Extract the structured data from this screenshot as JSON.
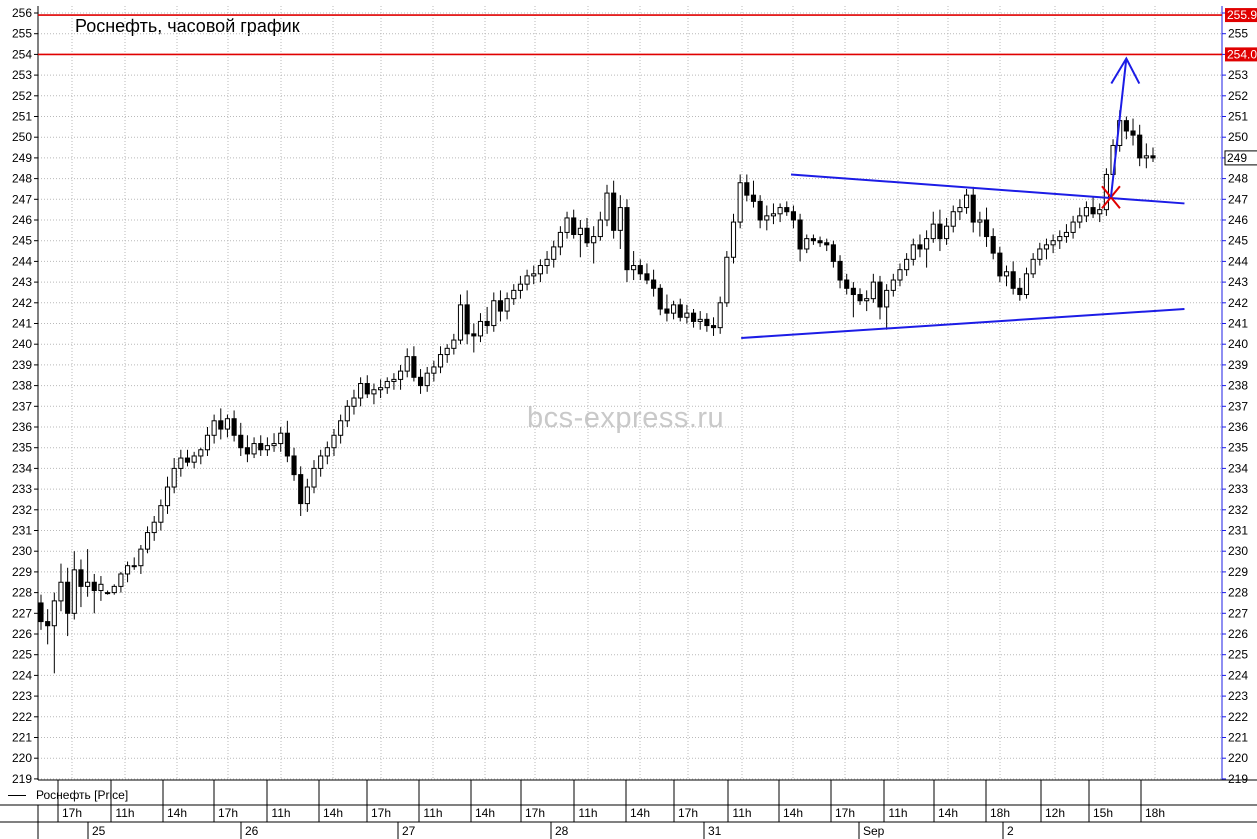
{
  "title": "Роснефть, часовой график",
  "watermark": "bcs-express.ru",
  "legend": "Роснефть [Price]",
  "colors": {
    "candle": "#000000",
    "trendline": "#1c1ce6",
    "resistance": "#e00000",
    "cross": "#e00000",
    "grid": "#b9b9b9",
    "price_tag_red": "#e00000"
  },
  "chart_data": {
    "type": "candlestick",
    "ylim": [
      219,
      256
    ],
    "y_ticks": [
      219,
      220,
      221,
      222,
      223,
      224,
      225,
      226,
      227,
      228,
      229,
      230,
      231,
      232,
      233,
      234,
      235,
      236,
      237,
      238,
      239,
      240,
      241,
      242,
      243,
      244,
      245,
      246,
      247,
      248,
      249,
      250,
      251,
      252,
      253,
      254,
      255,
      256
    ],
    "x_hour_labels": [
      "17h",
      "11h",
      "14h",
      "17h",
      "11h",
      "14h",
      "17h",
      "11h",
      "14h",
      "17h",
      "11h",
      "14h",
      "17h",
      "11h",
      "14h",
      "17h",
      "11h",
      "14h",
      "18h",
      "12h",
      "15h",
      "18h"
    ],
    "x_date_labels": [
      "25",
      "26",
      "27",
      "28",
      "31",
      "Sep",
      "2"
    ],
    "price_tags": [
      {
        "label": "255.9",
        "value": 255.9
      },
      {
        "label": "254.0",
        "value": 254.0
      },
      {
        "label": "249",
        "value": 249
      }
    ],
    "last_price": "249",
    "annotations": {
      "resistance_levels": [
        255.9,
        254.0
      ],
      "upper_trendline": {
        "from": [
          0.636,
          248.2
        ],
        "to": [
          0.9683,
          246.8
        ]
      },
      "lower_trendline": {
        "from": [
          0.5939,
          240.3
        ],
        "to": [
          0.9683,
          241.7
        ]
      },
      "breakout_mark": {
        "x": 0.9062,
        "y": 247.1
      },
      "target_arrow": {
        "from": [
          0.9062,
          247.1
        ],
        "to": [
          0.9192,
          253.8
        ]
      }
    },
    "series": [
      {
        "candles": [
          [
            227.5,
            227.9,
            226.2,
            226.6
          ],
          [
            226.6,
            227.2,
            225.5,
            226.4
          ],
          [
            226.4,
            228.0,
            224.1,
            227.6
          ],
          [
            227.6,
            229.4,
            227.1,
            228.5
          ],
          [
            228.5,
            229.2,
            225.9,
            227.0
          ],
          [
            227.0,
            230.0,
            226.7,
            229.1
          ],
          [
            229.1,
            229.6,
            227.3,
            228.3
          ],
          [
            228.3,
            230.1,
            227.8,
            228.5
          ],
          [
            228.5,
            228.9,
            227.0,
            228.1
          ],
          [
            228.1,
            228.8,
            227.6,
            228.4
          ],
          [
            228.0,
            228.1,
            227.9,
            228.0
          ],
          [
            228.0,
            228.4,
            227.9,
            228.3
          ],
          [
            228.3,
            229.0,
            228.0,
            228.9
          ],
          [
            228.9,
            229.5,
            228.5,
            229.3
          ],
          [
            229.3,
            229.7,
            229.1,
            229.3
          ],
          [
            229.3,
            230.3,
            228.9,
            230.1
          ],
          [
            230.1,
            231.2,
            229.9,
            230.9
          ],
          [
            230.9,
            231.7,
            230.5,
            231.4
          ],
          [
            231.4,
            232.5,
            231.0,
            232.2
          ],
          [
            232.2,
            233.6,
            231.8,
            233.1
          ],
          [
            233.1,
            234.5,
            232.8,
            234.0
          ],
          [
            234.0,
            234.9,
            233.6,
            234.5
          ],
          [
            234.5,
            234.9,
            234.1,
            234.3
          ],
          [
            234.3,
            234.8,
            234.0,
            234.6
          ],
          [
            234.6,
            235.0,
            234.2,
            234.9
          ],
          [
            234.9,
            236.0,
            234.6,
            235.6
          ],
          [
            235.6,
            236.6,
            235.2,
            236.3
          ],
          [
            236.3,
            236.9,
            235.4,
            235.9
          ],
          [
            235.9,
            236.6,
            235.5,
            236.4
          ],
          [
            236.4,
            236.8,
            235.3,
            235.6
          ],
          [
            235.6,
            236.2,
            234.6,
            235.0
          ],
          [
            235.0,
            235.6,
            234.3,
            234.7
          ],
          [
            234.7,
            235.5,
            234.5,
            235.2
          ],
          [
            235.2,
            235.6,
            234.6,
            234.9
          ],
          [
            234.9,
            235.5,
            234.6,
            235.1
          ],
          [
            235.1,
            235.7,
            234.8,
            235.2
          ],
          [
            235.2,
            236.0,
            234.8,
            235.7
          ],
          [
            235.7,
            236.3,
            234.3,
            234.6
          ],
          [
            234.6,
            235.0,
            233.4,
            233.7
          ],
          [
            233.7,
            234.1,
            231.7,
            232.3
          ],
          [
            232.3,
            233.5,
            231.9,
            233.1
          ],
          [
            233.1,
            234.4,
            232.8,
            234.0
          ],
          [
            234.0,
            234.9,
            233.6,
            234.6
          ],
          [
            234.6,
            235.3,
            234.2,
            235.0
          ],
          [
            235.0,
            235.9,
            234.6,
            235.6
          ],
          [
            235.6,
            236.6,
            235.2,
            236.3
          ],
          [
            236.3,
            237.3,
            236.0,
            237.0
          ],
          [
            237.0,
            237.8,
            236.6,
            237.4
          ],
          [
            237.4,
            238.4,
            237.0,
            238.1
          ],
          [
            238.1,
            238.5,
            237.4,
            237.6
          ],
          [
            237.6,
            238.1,
            237.1,
            237.8
          ],
          [
            237.8,
            238.3,
            237.4,
            237.9
          ],
          [
            237.9,
            238.4,
            237.6,
            238.2
          ],
          [
            238.2,
            238.6,
            237.8,
            238.3
          ],
          [
            238.3,
            239.0,
            237.8,
            238.7
          ],
          [
            238.7,
            239.8,
            238.4,
            239.4
          ],
          [
            239.4,
            239.9,
            238.2,
            238.4
          ],
          [
            238.4,
            238.8,
            237.6,
            238.0
          ],
          [
            238.0,
            238.9,
            237.7,
            238.6
          ],
          [
            238.6,
            239.2,
            238.2,
            238.9
          ],
          [
            238.9,
            239.9,
            238.6,
            239.5
          ],
          [
            239.5,
            240.0,
            239.1,
            239.8
          ],
          [
            239.8,
            240.5,
            239.5,
            240.2
          ],
          [
            240.2,
            242.4,
            240.0,
            241.9
          ],
          [
            241.9,
            242.6,
            240.0,
            240.5
          ],
          [
            240.5,
            241.0,
            239.6,
            240.4
          ],
          [
            240.4,
            241.5,
            240.1,
            241.1
          ],
          [
            241.1,
            241.8,
            240.5,
            240.9
          ],
          [
            240.9,
            242.5,
            240.6,
            242.1
          ],
          [
            242.1,
            242.6,
            241.1,
            241.6
          ],
          [
            241.6,
            242.5,
            241.2,
            242.2
          ],
          [
            242.2,
            242.9,
            241.9,
            242.6
          ],
          [
            242.6,
            243.3,
            242.2,
            242.9
          ],
          [
            242.9,
            243.6,
            242.6,
            243.3
          ],
          [
            243.3,
            243.8,
            242.9,
            243.4
          ],
          [
            243.4,
            244.1,
            243.0,
            243.8
          ],
          [
            243.8,
            244.5,
            243.4,
            244.1
          ],
          [
            244.1,
            245.0,
            243.7,
            244.7
          ],
          [
            244.7,
            245.7,
            244.3,
            245.4
          ],
          [
            245.4,
            246.4,
            245.1,
            246.1
          ],
          [
            246.1,
            246.5,
            245.1,
            245.3
          ],
          [
            245.3,
            246.0,
            244.2,
            245.6
          ],
          [
            245.6,
            246.1,
            244.7,
            244.9
          ],
          [
            244.9,
            245.7,
            243.9,
            245.2
          ],
          [
            245.2,
            246.4,
            245.0,
            246.0
          ],
          [
            246.0,
            247.7,
            245.7,
            247.3
          ],
          [
            247.3,
            247.9,
            245.1,
            245.5
          ],
          [
            245.5,
            247.2,
            244.6,
            246.6
          ],
          [
            246.6,
            247.0,
            243.0,
            243.6
          ],
          [
            243.6,
            244.5,
            243.1,
            243.8
          ],
          [
            243.8,
            244.1,
            243.1,
            243.4
          ],
          [
            243.4,
            243.9,
            242.9,
            243.1
          ],
          [
            243.1,
            243.6,
            242.3,
            242.7
          ],
          [
            242.7,
            242.9,
            241.4,
            241.7
          ],
          [
            241.7,
            242.4,
            241.1,
            241.5
          ],
          [
            241.5,
            242.1,
            241.2,
            241.9
          ],
          [
            241.9,
            242.2,
            241.1,
            241.3
          ],
          [
            241.3,
            241.9,
            241.0,
            241.5
          ],
          [
            241.5,
            241.7,
            240.8,
            241.1
          ],
          [
            241.1,
            241.6,
            240.7,
            241.2
          ],
          [
            241.2,
            241.5,
            240.6,
            240.9
          ],
          [
            240.9,
            241.3,
            240.4,
            240.8
          ],
          [
            240.8,
            242.3,
            240.5,
            242.0
          ],
          [
            242.0,
            244.5,
            241.8,
            244.2
          ],
          [
            244.2,
            246.3,
            243.9,
            245.9
          ],
          [
            245.9,
            248.2,
            245.6,
            247.8
          ],
          [
            247.8,
            248.2,
            246.9,
            247.2
          ],
          [
            247.2,
            247.9,
            246.6,
            246.9
          ],
          [
            246.9,
            247.2,
            245.6,
            246.0
          ],
          [
            246.0,
            246.7,
            245.5,
            246.2
          ],
          [
            246.2,
            246.8,
            245.8,
            246.3
          ],
          [
            246.3,
            246.8,
            245.9,
            246.6
          ],
          [
            246.6,
            246.9,
            246.2,
            246.4
          ],
          [
            246.4,
            246.7,
            245.6,
            246.0
          ],
          [
            246.0,
            246.3,
            244.0,
            244.6
          ],
          [
            244.6,
            245.3,
            244.4,
            245.1
          ],
          [
            245.1,
            245.3,
            244.8,
            245.0
          ],
          [
            245.0,
            245.2,
            244.7,
            244.9
          ],
          [
            244.9,
            245.1,
            244.5,
            244.8
          ],
          [
            244.8,
            245.0,
            243.7,
            244.0
          ],
          [
            244.0,
            244.3,
            242.7,
            243.1
          ],
          [
            243.1,
            243.4,
            242.4,
            242.7
          ],
          [
            242.7,
            243.0,
            241.3,
            242.4
          ],
          [
            242.4,
            242.7,
            241.9,
            242.1
          ],
          [
            242.1,
            242.6,
            241.6,
            242.2
          ],
          [
            242.2,
            243.4,
            242.0,
            243.0
          ],
          [
            243.0,
            243.3,
            241.2,
            241.8
          ],
          [
            241.8,
            242.9,
            240.7,
            242.6
          ],
          [
            242.6,
            243.4,
            242.3,
            243.1
          ],
          [
            243.1,
            243.9,
            242.8,
            243.6
          ],
          [
            243.6,
            244.4,
            243.3,
            244.1
          ],
          [
            244.1,
            245.1,
            243.8,
            244.8
          ],
          [
            244.8,
            245.3,
            244.2,
            244.6
          ],
          [
            244.6,
            245.5,
            243.7,
            245.1
          ],
          [
            245.1,
            246.4,
            244.9,
            245.8
          ],
          [
            245.8,
            246.5,
            244.5,
            245.1
          ],
          [
            245.1,
            246.1,
            244.8,
            245.7
          ],
          [
            245.7,
            246.7,
            245.4,
            246.4
          ],
          [
            246.4,
            247.0,
            246.0,
            246.6
          ],
          [
            246.6,
            247.5,
            246.3,
            247.2
          ],
          [
            247.2,
            247.6,
            245.4,
            245.9
          ],
          [
            245.9,
            246.4,
            245.2,
            246.0
          ],
          [
            246.0,
            246.6,
            244.7,
            245.2
          ],
          [
            245.2,
            245.6,
            244.1,
            244.4
          ],
          [
            244.4,
            244.7,
            243.0,
            243.3
          ],
          [
            243.3,
            243.8,
            242.8,
            243.5
          ],
          [
            243.5,
            244.0,
            242.4,
            242.7
          ],
          [
            242.7,
            243.2,
            242.1,
            242.4
          ],
          [
            242.4,
            243.7,
            242.2,
            243.4
          ],
          [
            243.4,
            244.4,
            243.2,
            244.1
          ],
          [
            244.1,
            244.9,
            243.8,
            244.6
          ],
          [
            244.6,
            245.1,
            244.1,
            244.8
          ],
          [
            244.8,
            245.3,
            244.4,
            245.0
          ],
          [
            245.0,
            245.5,
            244.6,
            245.2
          ],
          [
            245.2,
            245.8,
            244.9,
            245.4
          ],
          [
            245.4,
            246.2,
            245.1,
            245.9
          ],
          [
            245.9,
            246.6,
            245.6,
            246.2
          ],
          [
            246.2,
            246.9,
            245.9,
            246.6
          ],
          [
            246.6,
            247.1,
            246.1,
            246.3
          ],
          [
            246.3,
            246.8,
            245.9,
            246.5
          ],
          [
            246.5,
            248.5,
            246.2,
            248.2
          ],
          [
            248.2,
            249.9,
            247.9,
            249.6
          ],
          [
            249.6,
            251.3,
            249.3,
            250.8
          ],
          [
            250.8,
            251.0,
            249.9,
            250.3
          ],
          [
            250.3,
            250.9,
            249.6,
            250.1
          ],
          [
            250.1,
            250.6,
            248.6,
            249.0
          ],
          [
            249.0,
            249.7,
            248.5,
            249.1
          ],
          [
            249.1,
            249.5,
            248.8,
            249.0
          ]
        ]
      }
    ]
  }
}
